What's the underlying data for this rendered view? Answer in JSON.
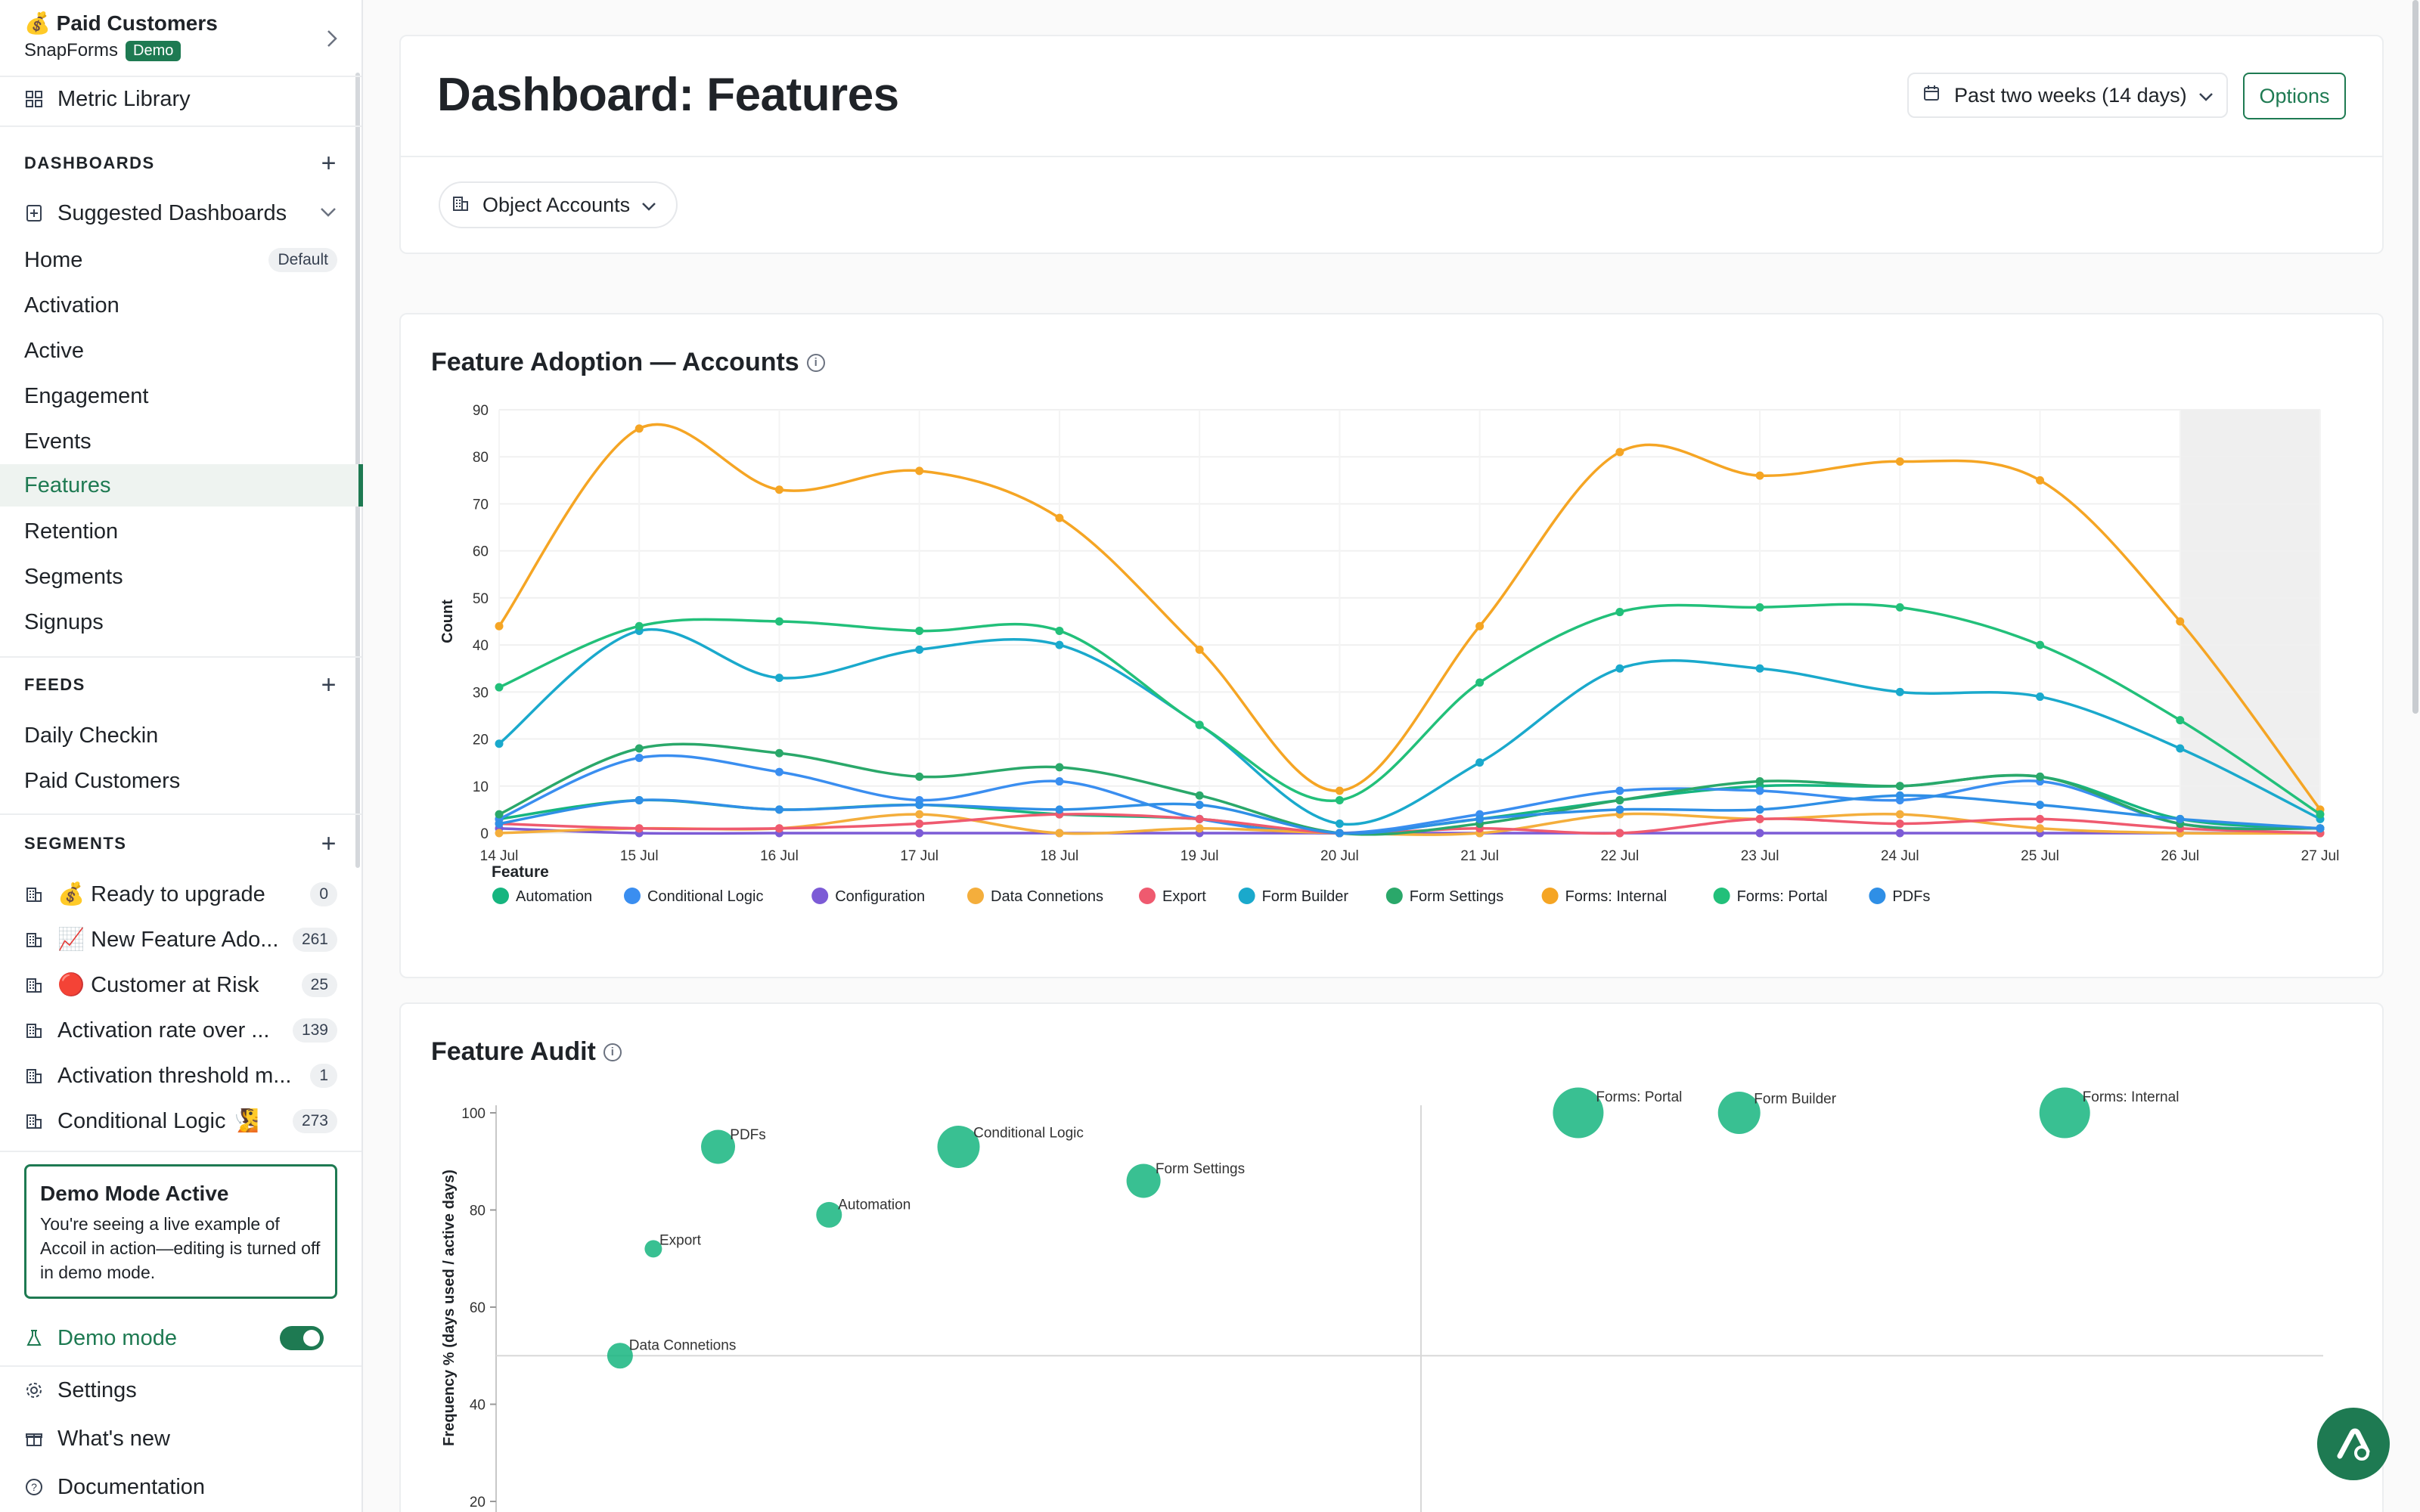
{
  "sidebar": {
    "workspace": {
      "title": "💰 Paid Customers",
      "org": "SnapForms",
      "badge": "Demo"
    },
    "metric_library": "Metric Library",
    "dashboards_heading": "DASHBOARDS",
    "suggested": "Suggested Dashboards",
    "dashboards": [
      {
        "label": "Home",
        "badge": "Default"
      },
      {
        "label": "Activation"
      },
      {
        "label": "Active"
      },
      {
        "label": "Engagement"
      },
      {
        "label": "Events"
      },
      {
        "label": "Features",
        "active": true
      },
      {
        "label": "Retention"
      },
      {
        "label": "Segments"
      },
      {
        "label": "Signups"
      }
    ],
    "feeds_heading": "FEEDS",
    "feeds": [
      "Daily Checkin",
      "Paid Customers"
    ],
    "segments_heading": "SEGMENTS",
    "segments": [
      {
        "label": "💰 Ready to upgrade",
        "count": "0"
      },
      {
        "label": "📈 New Feature Ado...",
        "count": "261"
      },
      {
        "label": "🔴 Customer at Risk",
        "count": "25"
      },
      {
        "label": "Activation rate over ...",
        "count": "139"
      },
      {
        "label": "Activation threshold m...",
        "count": "1"
      },
      {
        "label": "Conditional Logic 🧏",
        "count": "273"
      }
    ],
    "demo_box": {
      "title": "Demo Mode Active",
      "text": "You're seeing a live example of Accoil in action—editing is turned off in demo mode."
    },
    "demo_mode_label": "Demo mode",
    "demo_mode_on": true,
    "footer": [
      "Settings",
      "What's new",
      "Documentation"
    ]
  },
  "header": {
    "title": "Dashboard: Features",
    "range": "Past two weeks (14 days)",
    "options": "Options",
    "object": "Object Accounts"
  },
  "colors": {
    "accent": "#1e7a52",
    "series": [
      "#16b57f",
      "#3a8ef0",
      "#7c5bd6",
      "#f4ae3c",
      "#ef5a6f",
      "#1aa9cc",
      "#2aa86a",
      "#f5a524",
      "#22c07a",
      "#2f8fe6"
    ]
  },
  "chart_data": [
    {
      "type": "line",
      "title": "Feature Adoption — Accounts",
      "ylabel": "Count",
      "legend_title": "Feature",
      "legend_position": "bottom",
      "ylim": [
        0,
        90
      ],
      "yticks": [
        "0",
        "10",
        "20",
        "30",
        "40",
        "50",
        "60",
        "70",
        "80",
        "90"
      ],
      "categories": [
        "14 Jul",
        "15 Jul",
        "16 Jul",
        "17 Jul",
        "18 Jul",
        "19 Jul",
        "20 Jul",
        "21 Jul",
        "22 Jul",
        "23 Jul",
        "24 Jul",
        "25 Jul",
        "26 Jul",
        "27 Jul"
      ],
      "shaded_from": "26 Jul",
      "series": [
        {
          "name": "Automation",
          "values": [
            3,
            7,
            5,
            6,
            4,
            3,
            0,
            3,
            7,
            10,
            10,
            12,
            3,
            1
          ]
        },
        {
          "name": "Conditional Logic",
          "values": [
            3,
            16,
            13,
            7,
            11,
            3,
            0,
            4,
            9,
            9,
            7,
            11,
            2,
            1
          ]
        },
        {
          "name": "Configuration",
          "values": [
            1,
            0,
            0,
            0,
            0,
            0,
            0,
            0,
            0,
            0,
            0,
            0,
            0,
            0
          ]
        },
        {
          "name": "Data Connetions",
          "values": [
            0,
            1,
            1,
            4,
            0,
            1,
            0,
            0,
            4,
            3,
            4,
            1,
            0,
            0
          ]
        },
        {
          "name": "Export",
          "values": [
            2,
            1,
            1,
            2,
            4,
            3,
            0,
            1,
            0,
            3,
            2,
            3,
            1,
            0
          ]
        },
        {
          "name": "Form Builder",
          "values": [
            19,
            43,
            33,
            39,
            40,
            23,
            2,
            15,
            35,
            35,
            30,
            29,
            18,
            3
          ]
        },
        {
          "name": "Form Settings",
          "values": [
            4,
            18,
            17,
            12,
            14,
            8,
            0,
            2,
            7,
            11,
            10,
            12,
            2,
            1
          ]
        },
        {
          "name": "Forms: Internal",
          "values": [
            44,
            86,
            73,
            77,
            67,
            39,
            9,
            44,
            81,
            76,
            79,
            75,
            45,
            5
          ]
        },
        {
          "name": "Forms: Portal",
          "values": [
            31,
            44,
            45,
            43,
            43,
            23,
            7,
            32,
            47,
            48,
            48,
            40,
            24,
            4
          ]
        },
        {
          "name": "PDFs",
          "values": [
            2,
            7,
            5,
            6,
            5,
            6,
            0,
            3,
            5,
            5,
            8,
            6,
            3,
            1
          ]
        }
      ]
    },
    {
      "type": "scatter",
      "title": "Feature Audit",
      "ylabel": "Frequency % (days used / active days)",
      "yticks": [
        "20",
        "40",
        "60",
        "80",
        "100"
      ],
      "ylim": [
        20,
        100
      ],
      "points": [
        {
          "label": "PDFs",
          "x": 0.12,
          "y": 93,
          "size": 3
        },
        {
          "label": "Conditional Logic",
          "x": 0.25,
          "y": 93,
          "size": 4
        },
        {
          "label": "Form Settings",
          "x": 0.35,
          "y": 86,
          "size": 3
        },
        {
          "label": "Automation",
          "x": 0.18,
          "y": 79,
          "size": 2
        },
        {
          "label": "Export",
          "x": 0.085,
          "y": 72,
          "size": 1
        },
        {
          "label": "Data Connetions",
          "x": 0.067,
          "y": 50,
          "size": 2
        },
        {
          "label": "Forms: Portal",
          "x": 0.585,
          "y": 100,
          "size": 5
        },
        {
          "label": "Form Builder",
          "x": 0.672,
          "y": 100,
          "size": 4
        },
        {
          "label": "Forms: Internal",
          "x": 0.848,
          "y": 100,
          "size": 5
        }
      ]
    }
  ]
}
